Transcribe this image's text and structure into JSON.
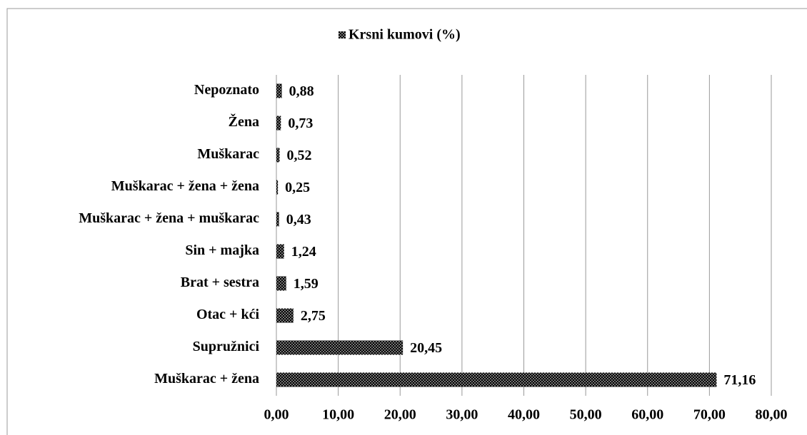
{
  "chart_data": {
    "type": "hbar",
    "categories": [
      "Nepoznato",
      "Žena",
      "Muškarac",
      "Muškarac + žena + žena",
      "Muškarac + žena + muškarac",
      "Sin + majka",
      "Brat + sestra",
      "Otac + kći",
      "Supružnici",
      "Muškarac + žena"
    ],
    "series": [
      {
        "name": "Krsni kumovi (%)",
        "color": "#000000",
        "values": [
          0.88,
          0.73,
          0.52,
          0.25,
          0.43,
          1.24,
          1.59,
          2.75,
          20.45,
          71.16
        ],
        "value_labels": [
          "0,88",
          "0,73",
          "0,52",
          "0,25",
          "0,43",
          "1,24",
          "1,59",
          "2,75",
          "20,45",
          "71,16"
        ]
      }
    ],
    "xlim": [
      0,
      80
    ],
    "xticks": [
      {
        "value": 0,
        "label": "0,00"
      },
      {
        "value": 10,
        "label": "10,00"
      },
      {
        "value": 20,
        "label": "20,00"
      },
      {
        "value": 30,
        "label": "30,00"
      },
      {
        "value": 40,
        "label": "40,00"
      },
      {
        "value": 50,
        "label": "50,00"
      },
      {
        "value": 60,
        "label": "60,00"
      },
      {
        "value": 70,
        "label": "70,00"
      },
      {
        "value": 80,
        "label": "80,00"
      }
    ],
    "grid": true,
    "legend": "top"
  }
}
